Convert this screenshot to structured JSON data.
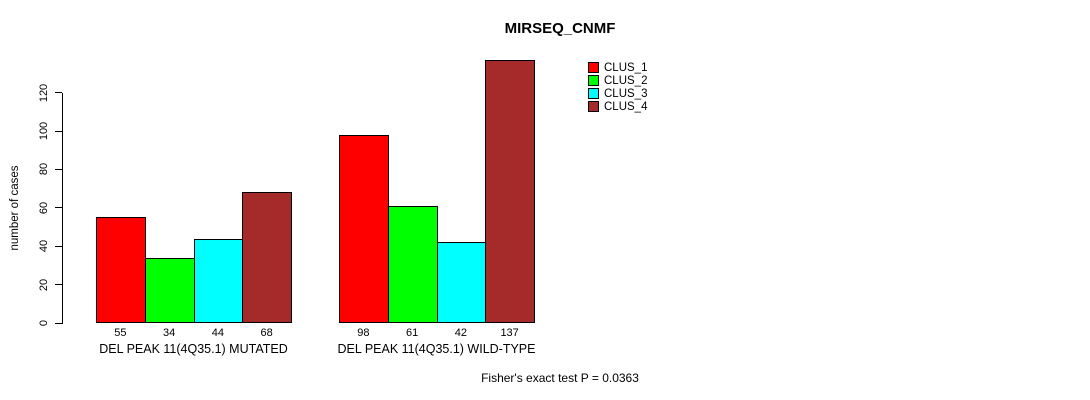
{
  "chart_data": {
    "type": "bar",
    "title": "MIRSEQ_CNMF",
    "xlabel": "",
    "ylabel": "number of cases",
    "ylim": [
      0,
      137
    ],
    "yticks": [
      0,
      20,
      40,
      60,
      80,
      100,
      120
    ],
    "grid": false,
    "legend_position": "top-right",
    "groups": [
      {
        "label": "DEL PEAK 11(4Q35.1) MUTATED",
        "values": [
          55,
          34,
          44,
          68
        ]
      },
      {
        "label": "DEL PEAK 11(4Q35.1) WILD-TYPE",
        "values": [
          98,
          61,
          42,
          137
        ]
      }
    ],
    "series": [
      {
        "name": "CLUS_1",
        "color": "#ff0000"
      },
      {
        "name": "CLUS_2",
        "color": "#00ff00"
      },
      {
        "name": "CLUS_3",
        "color": "#00ffff"
      },
      {
        "name": "CLUS_4",
        "color": "#a52a2a"
      }
    ],
    "annotation": "Fisher's exact test P = 0.0363"
  },
  "colors": {
    "axis": "#000000",
    "bar_border": "#000000",
    "background": "#ffffff",
    "text": "#000000"
  }
}
